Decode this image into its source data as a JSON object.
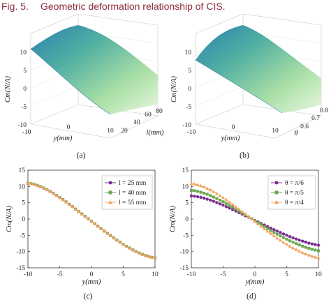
{
  "figure": {
    "caption_label": "Fig. 5.",
    "caption_text": "Geometric deformation relationship of CIS."
  },
  "chart_data": [
    {
      "id": "a",
      "type": "surface",
      "panel_label": "(a)",
      "xlabel": "y(mm)",
      "ylabel": "l(mm)",
      "zlabel": "Cm(N/A)",
      "x_ticks": [
        "-10",
        "0",
        "10"
      ],
      "y_ticks": [
        "20",
        "40",
        "60",
        "80"
      ],
      "z_ticks": [
        "10",
        "5",
        "0",
        "-5",
        "-10"
      ],
      "xlim": [
        -10,
        10
      ],
      "ylim": [
        20,
        80
      ],
      "zlim": [
        -10,
        10
      ],
      "colormap": [
        "#2b7fb0",
        "#52b0a2",
        "#a9dfa6",
        "#eaf7e0"
      ]
    },
    {
      "id": "b",
      "type": "surface",
      "panel_label": "(b)",
      "xlabel": "y(mm)",
      "ylabel": "θ",
      "zlabel": "Cm(N/A)",
      "x_ticks": [
        "-10",
        "0",
        "10"
      ],
      "y_ticks": [
        "0.6",
        "0.7",
        "0.8"
      ],
      "z_ticks": [
        "10",
        "5",
        "0",
        "-5",
        "-10"
      ],
      "xlim": [
        -10,
        10
      ],
      "ylim": [
        0.52,
        0.79
      ],
      "zlim": [
        -10,
        10
      ],
      "colormap": [
        "#2b7fb0",
        "#52b0a2",
        "#a9dfa6",
        "#eaf7e0"
      ]
    },
    {
      "id": "c",
      "type": "line",
      "panel_label": "(c)",
      "xlabel": "y(mm)",
      "ylabel": "Cm(N/A)",
      "xlim": [
        -10,
        10
      ],
      "ylim": [
        -15,
        15
      ],
      "x_ticks": [
        -10,
        -5,
        0,
        5,
        10
      ],
      "y_ticks": [
        15,
        10,
        5,
        0,
        -5,
        -10,
        -15
      ],
      "legend_position": "top-right",
      "x": [
        -10,
        -9.5,
        -9,
        -8.5,
        -8,
        -7.5,
        -7,
        -6.5,
        -6,
        -5.5,
        -5,
        -4.5,
        -4,
        -3.5,
        -3,
        -2.5,
        -2,
        -1.5,
        -1,
        -0.5,
        0,
        0.5,
        1,
        1.5,
        2,
        2.5,
        3,
        3.5,
        4,
        4.5,
        5,
        5.5,
        6,
        6.5,
        7,
        7.5,
        8,
        8.5,
        9,
        9.5,
        10
      ],
      "series": [
        {
          "name": "l = 25 mm",
          "color": "#7b2f8e",
          "marker": "circle",
          "values": [
            11.0,
            10.85,
            10.65,
            10.3,
            9.95,
            9.5,
            9.0,
            8.45,
            7.9,
            7.25,
            6.6,
            5.95,
            5.25,
            4.5,
            3.8,
            3.05,
            2.3,
            1.55,
            0.8,
            0.05,
            -0.7,
            -1.45,
            -2.2,
            -2.95,
            -3.7,
            -4.4,
            -5.1,
            -5.8,
            -6.5,
            -7.15,
            -7.8,
            -8.4,
            -8.95,
            -9.5,
            -10.0,
            -10.45,
            -10.85,
            -11.2,
            -11.5,
            -11.75,
            -11.95
          ]
        },
        {
          "name": "l = 40 mm",
          "color": "#6aa84f",
          "marker": "square",
          "values": [
            11.0,
            10.85,
            10.65,
            10.3,
            9.95,
            9.5,
            9.0,
            8.45,
            7.9,
            7.25,
            6.6,
            5.95,
            5.25,
            4.5,
            3.8,
            3.05,
            2.3,
            1.55,
            0.8,
            0.05,
            -0.7,
            -1.45,
            -2.2,
            -2.95,
            -3.7,
            -4.4,
            -5.1,
            -5.8,
            -6.5,
            -7.15,
            -7.8,
            -8.4,
            -8.95,
            -9.5,
            -10.0,
            -10.45,
            -10.85,
            -11.2,
            -11.5,
            -11.75,
            -11.95
          ]
        },
        {
          "name": "l = 55 mm",
          "color": "#f0a35e",
          "marker": "triangle",
          "values": [
            11.0,
            10.85,
            10.65,
            10.3,
            9.95,
            9.5,
            9.0,
            8.45,
            7.9,
            7.25,
            6.6,
            5.95,
            5.25,
            4.5,
            3.8,
            3.05,
            2.3,
            1.55,
            0.8,
            0.05,
            -0.7,
            -1.45,
            -2.2,
            -2.95,
            -3.7,
            -4.4,
            -5.1,
            -5.8,
            -6.5,
            -7.15,
            -7.8,
            -8.4,
            -8.95,
            -9.5,
            -10.0,
            -10.45,
            -10.85,
            -11.2,
            -11.5,
            -11.75,
            -11.95
          ]
        }
      ]
    },
    {
      "id": "d",
      "type": "line",
      "panel_label": "(d)",
      "xlabel": "y(mm)",
      "ylabel": "Cm(N/A)",
      "xlim": [
        -10,
        10
      ],
      "ylim": [
        -15,
        15
      ],
      "x_ticks": [
        -10,
        -5,
        0,
        5,
        10
      ],
      "y_ticks": [
        15,
        10,
        5,
        0,
        -5,
        -10,
        -15
      ],
      "legend_position": "top-right",
      "x": [
        -10,
        -9.5,
        -9,
        -8.5,
        -8,
        -7.5,
        -7,
        -6.5,
        -6,
        -5.5,
        -5,
        -4.5,
        -4,
        -3.5,
        -3,
        -2.5,
        -2,
        -1.5,
        -1,
        -0.5,
        0,
        0.5,
        1,
        1.5,
        2,
        2.5,
        3,
        3.5,
        4,
        4.5,
        5,
        5.5,
        6,
        6.5,
        7,
        7.5,
        8,
        8.5,
        9,
        9.5,
        10
      ],
      "series": [
        {
          "name": "θ = π/6",
          "color": "#7b2f8e",
          "marker": "circle",
          "values": [
            7.1,
            7.0,
            6.85,
            6.65,
            6.4,
            6.1,
            5.8,
            5.45,
            5.05,
            4.65,
            4.25,
            3.8,
            3.35,
            2.9,
            2.45,
            1.95,
            1.5,
            1.0,
            0.55,
            0.05,
            -0.45,
            -0.9,
            -1.4,
            -1.85,
            -2.35,
            -2.8,
            -3.25,
            -3.7,
            -4.15,
            -4.6,
            -5.0,
            -5.4,
            -5.8,
            -6.15,
            -6.5,
            -6.8,
            -7.1,
            -7.4,
            -7.65,
            -7.85,
            -8.05
          ]
        },
        {
          "name": "θ = π/5",
          "color": "#6aa84f",
          "marker": "square",
          "values": [
            8.8,
            8.7,
            8.5,
            8.25,
            7.95,
            7.6,
            7.2,
            6.75,
            6.3,
            5.8,
            5.3,
            4.75,
            4.2,
            3.65,
            3.05,
            2.45,
            1.85,
            1.25,
            0.65,
            0.05,
            -0.55,
            -1.15,
            -1.75,
            -2.35,
            -2.95,
            -3.55,
            -4.1,
            -4.65,
            -5.2,
            -5.7,
            -6.2,
            -6.7,
            -7.15,
            -7.55,
            -7.95,
            -8.35,
            -8.7,
            -9.0,
            -9.3,
            -9.55,
            -9.75
          ]
        },
        {
          "name": "θ = π/4",
          "color": "#f0a35e",
          "marker": "triangle",
          "values": [
            10.9,
            10.75,
            10.5,
            10.2,
            9.85,
            9.4,
            8.95,
            8.4,
            7.8,
            7.2,
            6.55,
            5.9,
            5.2,
            4.5,
            3.75,
            3.0,
            2.25,
            1.5,
            0.75,
            0.0,
            -0.75,
            -1.5,
            -2.25,
            -3.0,
            -3.75,
            -4.45,
            -5.15,
            -5.85,
            -6.5,
            -7.15,
            -7.75,
            -8.35,
            -8.9,
            -9.4,
            -9.9,
            -10.35,
            -10.75,
            -11.1,
            -11.45,
            -11.7,
            -11.95
          ]
        }
      ]
    }
  ]
}
